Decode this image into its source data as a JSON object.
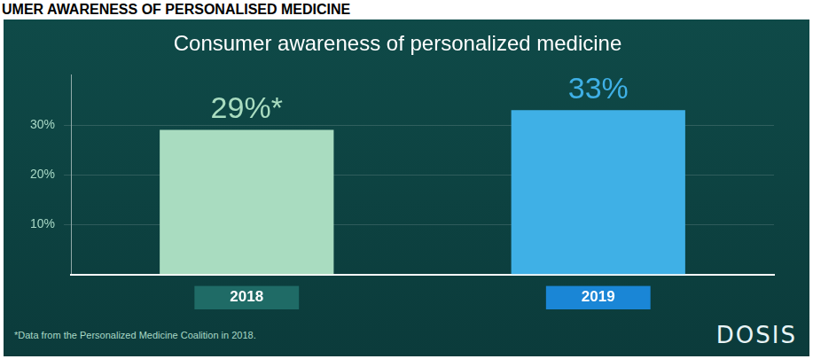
{
  "chart_data": {
    "type": "bar",
    "header": "UMER AWARENESS OF PERSONALISED MEDICINE",
    "title": "Consumer awareness of personalized medicine",
    "categories": [
      "2018",
      "2019"
    ],
    "values": [
      29,
      33
    ],
    "value_labels": [
      "29%*",
      "33%"
    ],
    "colors": [
      "#a9dcc0",
      "#3fb0e6"
    ],
    "ylim": [
      0,
      40
    ],
    "yticks": [
      {
        "value": 10,
        "label": "10%"
      },
      {
        "value": 20,
        "label": "20%"
      },
      {
        "value": 30,
        "label": "30%"
      }
    ],
    "grid": true,
    "data_labels": true,
    "footnote": "*Data from the Personalized Medicine Coalition in 2018.",
    "brand": "DOSIS"
  }
}
